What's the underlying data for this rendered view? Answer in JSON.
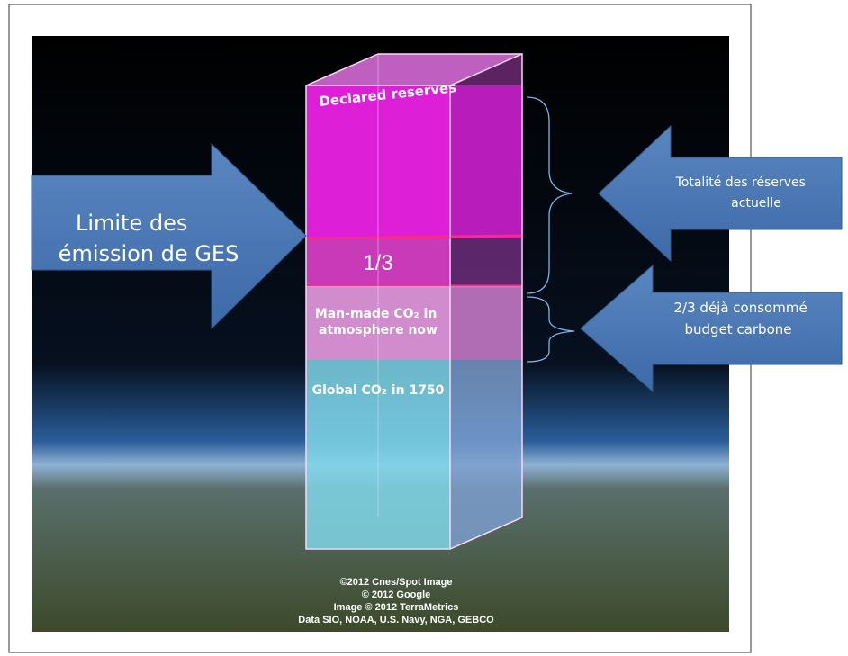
{
  "column": {
    "declared": "Declared reserves",
    "third": "1/3",
    "manmade": [
      "Man-made CO₂ in",
      "atmosphere now"
    ],
    "global": "Global CO₂ in 1750"
  },
  "arrows": {
    "left": [
      "Limite des",
      "émission de GES"
    ],
    "right_top": [
      "Totalité des réserves",
      "actuelle"
    ],
    "right_bottom": [
      "2/3 déjà consommé",
      "budget carbone"
    ]
  },
  "credits": [
    "©2012 Cnes/Spot Image",
    "© 2012 Google",
    "Image © 2012 TerraMetrics",
    "Data SIO, NOAA, U.S. Navy, NGA, GEBCO"
  ]
}
